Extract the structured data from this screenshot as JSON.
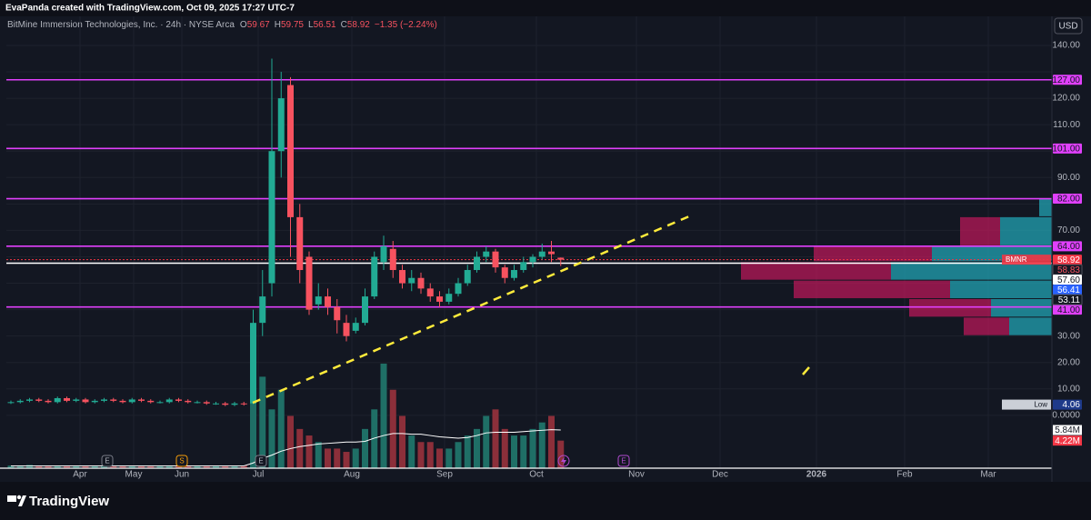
{
  "attribution": "EvaPanda created with TradingView.com, Oct 09, 2025 17:27 UTC-7",
  "footer": {
    "brand": "TradingView"
  },
  "chart_data": {
    "type": "candlestick",
    "symbol": "BitMine Immersion Technologies, Inc. · 24h · NYSE Arca",
    "ohlc_letters": [
      "O",
      "H",
      "L",
      "C"
    ],
    "change": "−1.35 (−2.24%)",
    "currency": "USD",
    "categories": [
      "Apr",
      "May",
      "Jun",
      "Jul",
      "Aug",
      "Sep",
      "Oct",
      "Nov",
      "Dec",
      "2026",
      "Feb",
      "Mar"
    ],
    "open": [
      4.8,
      5,
      5.5,
      6,
      5.5,
      5,
      6.5,
      5.5,
      6,
      5,
      5.5,
      6,
      5.5,
      5,
      6,
      5.5,
      5,
      5,
      6,
      5.5,
      5,
      5,
      4.5,
      4.5,
      4,
      4.5,
      4.5,
      35,
      50,
      100,
      125,
      75,
      60,
      42,
      45,
      41,
      35,
      32,
      35,
      45,
      58,
      63,
      55,
      50,
      52,
      48,
      45,
      43,
      46,
      50,
      55,
      60,
      62,
      56,
      52,
      55,
      58,
      60,
      62,
      59.67
    ],
    "high": [
      5.6,
      6.1,
      6.6,
      6.6,
      6.1,
      7.1,
      7.1,
      6.6,
      6.6,
      6.1,
      6.6,
      6.6,
      6.1,
      6.6,
      6.6,
      6.1,
      5.6,
      6.6,
      6.6,
      6.1,
      5.6,
      5.6,
      5.1,
      5.1,
      5.1,
      5.1,
      40,
      55,
      135,
      130,
      128,
      80,
      62,
      50,
      48,
      44,
      38,
      37,
      48,
      62,
      68,
      66,
      57,
      55,
      54,
      50,
      47,
      48,
      52,
      57,
      62,
      64,
      63,
      57,
      57,
      60,
      61,
      65,
      66,
      59.75
    ],
    "low": [
      4.3,
      4.5,
      5,
      5,
      4.5,
      4.5,
      5,
      5,
      4.5,
      4.5,
      5,
      5,
      4.5,
      4.5,
      5,
      4.5,
      4.5,
      4.5,
      5,
      4.5,
      4.5,
      4,
      4,
      3.5,
      3.5,
      3.7,
      4.2,
      30,
      45,
      90,
      60,
      50,
      38,
      40,
      38,
      31,
      28,
      31,
      34,
      44,
      55,
      52,
      48,
      47,
      46,
      43,
      41,
      42,
      45,
      49,
      54,
      58,
      54,
      50,
      51,
      54,
      56,
      59,
      58,
      56.51
    ],
    "close": [
      5,
      5.5,
      6,
      5.5,
      5,
      6.5,
      5.5,
      6,
      5,
      5.5,
      6,
      5.5,
      5,
      6,
      5.5,
      5,
      5,
      6,
      5.5,
      5,
      5,
      4.5,
      4.5,
      4,
      4.5,
      4.2,
      35,
      45,
      100,
      120,
      75,
      55,
      40,
      45,
      41,
      36,
      30,
      35,
      45,
      60,
      64,
      55,
      50,
      52,
      48,
      45,
      43,
      46,
      50,
      55,
      60,
      62,
      56,
      52,
      55,
      58,
      60,
      62,
      61,
      58.92
    ],
    "up_color": "#22ab94",
    "down_color": "#f7525f",
    "ylim": [
      -20,
      151
    ],
    "yticks": [
      {
        "value": 140,
        "label": "140.00"
      },
      {
        "value": 130,
        "label": "130.00"
      },
      {
        "value": 120,
        "label": "120.00"
      },
      {
        "value": 110,
        "label": "110.00"
      },
      {
        "value": 100,
        "label": "100.00"
      },
      {
        "value": 90,
        "label": "90.00"
      },
      {
        "value": 80,
        "label": "80.00"
      },
      {
        "value": 70,
        "label": "70.00"
      },
      {
        "value": 60,
        "label": "60.00"
      },
      {
        "value": 50,
        "label": "50.00"
      },
      {
        "value": 40,
        "label": "40.00"
      },
      {
        "value": 30,
        "label": "30.00"
      },
      {
        "value": 20,
        "label": "20.00"
      },
      {
        "value": 10,
        "label": "10.00"
      },
      {
        "value": 0,
        "label": "0.0000"
      }
    ],
    "grid": true,
    "levels": {
      "color": "#e040fb",
      "lines": [
        {
          "value": 127,
          "label": "127.00"
        },
        {
          "value": 101,
          "label": "101.00"
        },
        {
          "value": 82,
          "label": "82.00"
        },
        {
          "value": 64,
          "label": "64.00"
        },
        {
          "value": 41,
          "label": "41.00"
        }
      ]
    },
    "markers": [
      {
        "value": 58.92,
        "label": "58.92",
        "tag": "BMNR",
        "bg": "#f23645",
        "fg": "#ffffff",
        "line": "dotted"
      },
      {
        "value": 58.83,
        "label": "58.83",
        "bg": "#131722",
        "fg": "#f7525f"
      },
      {
        "value": 57.6,
        "label": "57.60",
        "bg": "#ffffff",
        "fg": "#131722",
        "line": "solid"
      },
      {
        "value": 56.41,
        "label": "56.41",
        "bg": "#2962ff",
        "fg": "#ffffff"
      },
      {
        "value": 53.11,
        "label": "53.11",
        "bg": "#131722",
        "fg": "#ffffff"
      },
      {
        "value": 4.06,
        "label": "4.06",
        "tag": "Low",
        "bg": "#1e3a8a",
        "fg": "#ffffff"
      }
    ],
    "volume": {
      "values": [
        0.4,
        0.3,
        0.5,
        0.3,
        0.4,
        0.3,
        0.3,
        0.4,
        0.3,
        0.3,
        0.4,
        0.3,
        0.3,
        0.3,
        0.4,
        0.3,
        0.3,
        0.3,
        0.4,
        0.3,
        0.3,
        0.3,
        0.3,
        0.4,
        0.3,
        0.4,
        10,
        14,
        9,
        12,
        8,
        6,
        5,
        4,
        3,
        3,
        2.5,
        3,
        6,
        9,
        16,
        12,
        8,
        5,
        4,
        4,
        3,
        3,
        4,
        5,
        6,
        8,
        9,
        6,
        5,
        5,
        6,
        7,
        8,
        4.22
      ],
      "label": "4.22M",
      "up_color": "#1f6f66",
      "down_color": "#8c2f3a"
    },
    "volume_ma": {
      "values": [
        0.35,
        0.35,
        0.35,
        0.35,
        0.35,
        0.35,
        0.35,
        0.35,
        0.35,
        0.35,
        0.35,
        0.35,
        0.35,
        0.35,
        0.35,
        0.35,
        0.35,
        0.35,
        0.35,
        0.35,
        0.35,
        0.35,
        0.35,
        0.35,
        0.35,
        0.35,
        0.8,
        1.5,
        2,
        2.6,
        3,
        3.3,
        3.5,
        3.7,
        3.8,
        3.9,
        4,
        4,
        4.1,
        4.6,
        5,
        5.3,
        5.3,
        5.2,
        5.2,
        5,
        4.8,
        4.7,
        4.6,
        4.7,
        5,
        5.4,
        5.5,
        5.5,
        5.5,
        5.6,
        5.7,
        5.8,
        5.9,
        5.84
      ],
      "label": "5.84M",
      "color": "#ffffff"
    },
    "volume_profile": {
      "bins": [
        30,
        37,
        44,
        51,
        58,
        64,
        75,
        82
      ],
      "up": [
        47,
        67,
        112,
        177,
        132,
        57,
        14
      ],
      "down": [
        50,
        90,
        172,
        165,
        130,
        44,
        0
      ],
      "up_color": "#22a3b3",
      "down_color": "#c2185b"
    },
    "events": [
      "E",
      "S",
      "E",
      "E"
    ]
  }
}
